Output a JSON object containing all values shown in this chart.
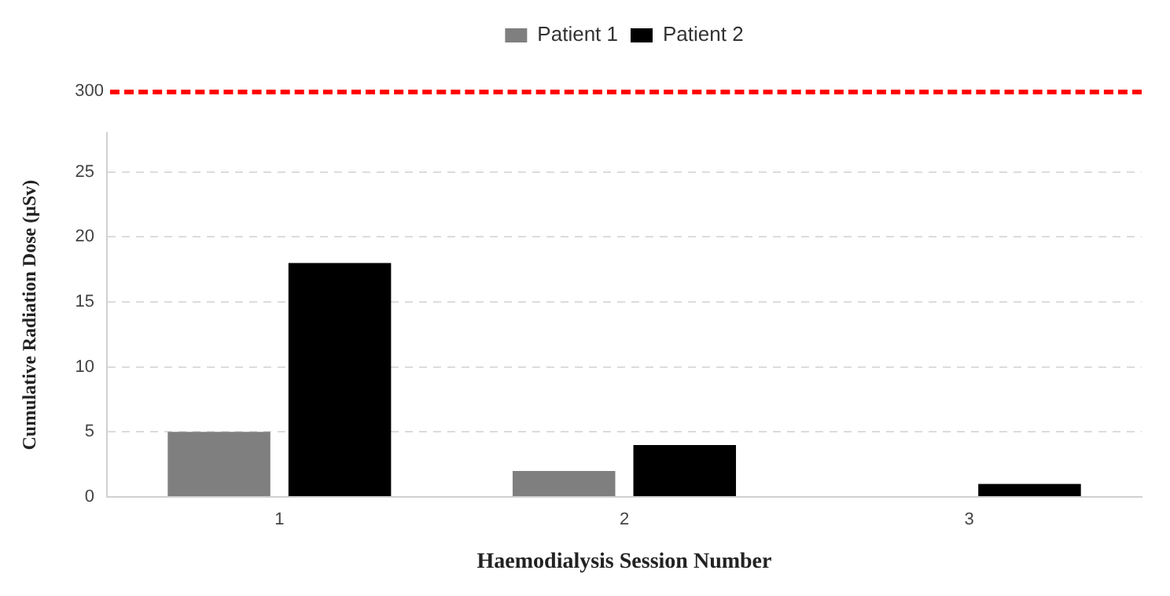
{
  "chart_data": [
    {
      "type": "other",
      "series": [
        {
          "name": "Patient 1",
          "color": "#7f7f7f"
        },
        {
          "name": "Patient 2",
          "color": "#000000"
        }
      ],
      "legend": "top",
      "annotations": [
        "300"
      ]
    },
    {
      "type": "bar",
      "xlabel": "Haemodialysis Session Number",
      "ylabel": "Cumulative Radiation Dose (µSv)",
      "categories": [
        "1",
        "2",
        "3"
      ],
      "series": [
        {
          "color": "#7f7f7f",
          "values": [
            5,
            2,
            null
          ]
        },
        {
          "color": "#000000",
          "values": [
            18,
            4,
            1
          ]
        }
      ],
      "ylim": [
        0,
        28
      ],
      "yticks": [
        0,
        5,
        10,
        15,
        20,
        25
      ],
      "grid": "y"
    }
  ]
}
